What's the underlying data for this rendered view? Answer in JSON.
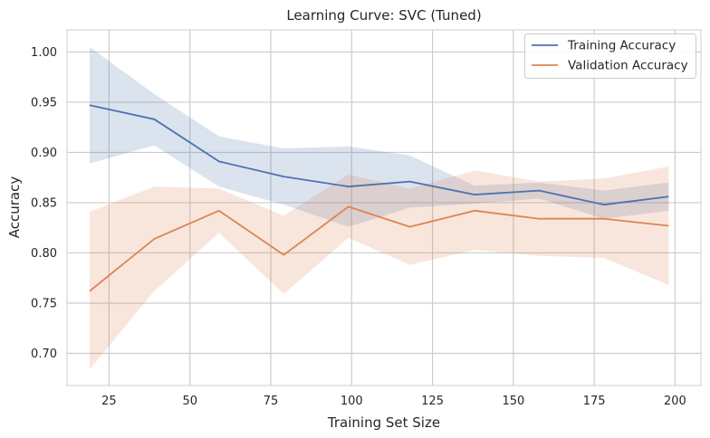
{
  "chart_data": {
    "type": "line",
    "title": "Learning Curve: SVC (Tuned)",
    "xlabel": "Training Set Size",
    "ylabel": "Accuracy",
    "xlim": [
      12,
      208
    ],
    "ylim": [
      0.668,
      1.022
    ],
    "xticks": [
      25,
      50,
      75,
      100,
      125,
      150,
      175,
      200
    ],
    "yticks": [
      0.7,
      0.75,
      0.8,
      0.85,
      0.9,
      0.95,
      1.0
    ],
    "ytick_labels": [
      "0.70",
      "0.75",
      "0.80",
      "0.85",
      "0.90",
      "0.95",
      "1.00"
    ],
    "grid": true,
    "legend_position": "top-right",
    "x": [
      19,
      39,
      59,
      79,
      99,
      118,
      138,
      158,
      178,
      198
    ],
    "series": [
      {
        "name": "Training Accuracy",
        "color": "#4c72b0",
        "band_color": "#4c72b0",
        "values": [
          0.947,
          0.933,
          0.891,
          0.876,
          0.866,
          0.871,
          0.858,
          0.862,
          0.848,
          0.856
        ],
        "upper": [
          1.005,
          0.958,
          0.916,
          0.904,
          0.906,
          0.897,
          0.867,
          0.87,
          0.862,
          0.87
        ],
        "lower": [
          0.889,
          0.907,
          0.866,
          0.848,
          0.826,
          0.845,
          0.849,
          0.854,
          0.834,
          0.842
        ]
      },
      {
        "name": "Validation Accuracy",
        "color": "#dd8452",
        "band_color": "#dd8452",
        "values": [
          0.762,
          0.814,
          0.842,
          0.798,
          0.846,
          0.826,
          0.842,
          0.834,
          0.834,
          0.827
        ],
        "upper": [
          0.841,
          0.866,
          0.864,
          0.837,
          0.878,
          0.864,
          0.882,
          0.871,
          0.874,
          0.886
        ],
        "lower": [
          0.684,
          0.762,
          0.82,
          0.759,
          0.815,
          0.788,
          0.803,
          0.797,
          0.795,
          0.768
        ]
      }
    ]
  }
}
